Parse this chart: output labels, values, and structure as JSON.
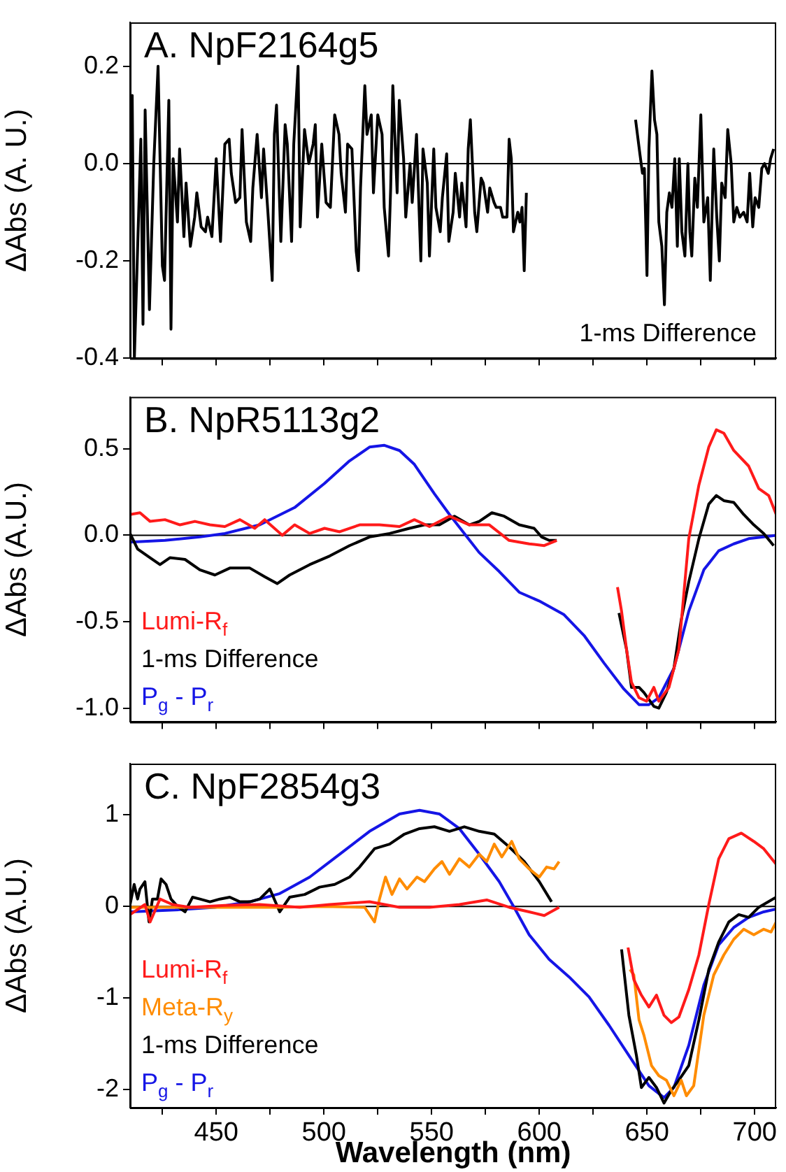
{
  "chart_data": [
    {
      "type": "line",
      "title": "A. NpF2164g5",
      "ylabel": "ΔAbs (A. U.)",
      "xlim": [
        410,
        710
      ],
      "ylim": [
        -0.4,
        0.29
      ],
      "xticks": [
        {
          "value": 425,
          "label": null
        },
        450,
        {
          "value": 475,
          "label": null
        },
        500,
        {
          "value": 525,
          "label": null
        },
        550,
        {
          "value": 575,
          "label": null
        },
        600,
        {
          "value": 625,
          "label": null
        },
        650,
        {
          "value": 675,
          "label": null
        },
        700
      ],
      "yticks": [
        {
          "value": -0.4,
          "label": "-0.4"
        },
        {
          "value": -0.2,
          "label": "-0.2"
        },
        {
          "value": 0,
          "label": "0.0"
        },
        {
          "value": 0.2,
          "label": "0.2"
        }
      ],
      "tick_labels": "y",
      "legend": "bottom right",
      "ref_lines": [
        {
          "axis": "y",
          "value": 0
        }
      ],
      "series": [
        {
          "name": "1-ms Difference",
          "color": "#000000",
          "x": [
            410,
            411,
            412,
            415,
            416,
            417,
            419,
            421,
            423,
            425,
            426,
            428,
            429,
            430,
            432,
            433,
            435,
            436,
            438,
            440,
            441,
            443,
            445,
            446,
            448,
            450,
            452,
            454,
            456,
            457,
            459,
            461,
            462,
            464,
            466,
            467,
            469,
            471,
            472,
            474,
            476,
            477,
            478,
            480,
            482,
            483,
            485,
            486,
            488,
            489,
            491,
            493,
            495,
            496,
            497,
            499,
            501,
            503,
            505,
            507,
            508,
            510,
            511,
            513,
            515,
            516,
            517,
            519,
            520,
            522,
            523,
            525,
            527,
            528,
            530,
            531,
            532,
            534,
            535,
            537,
            538,
            540,
            541,
            543,
            545,
            546,
            548,
            549,
            551,
            552,
            554,
            555,
            557,
            558,
            560,
            561,
            563,
            564,
            566,
            567,
            568,
            570,
            571,
            573,
            574,
            576,
            577,
            579,
            580,
            582,
            583,
            585,
            586,
            587,
            588,
            590,
            591,
            592,
            593,
            594,
            620,
            644.7,
            646.7,
            647.9,
            648.8,
            650.0,
            650.9,
            652.3,
            653.5,
            654.6,
            655.5,
            656.9,
            658.1,
            659.2,
            660.4,
            661.6,
            662.9,
            664.1,
            665.0,
            666.2,
            667.6,
            669.0,
            669.9,
            670.8,
            672.2,
            673.4,
            675.0,
            676.4,
            678.2,
            679.4,
            681.0,
            682.4,
            683.6,
            684.7,
            686.3,
            687.5,
            689.1,
            690.3,
            691.7,
            693.1,
            694.9,
            696.5,
            697.7,
            699.1,
            700.2,
            701.9,
            703.3,
            704.6,
            706.3,
            707.4,
            708.8
          ],
          "values": [
            0.0,
            0.14,
            -0.4,
            0.05,
            -0.33,
            0.11,
            -0.3,
            0.0,
            0.2,
            -0.21,
            -0.24,
            0.13,
            -0.34,
            0.01,
            -0.12,
            0.03,
            -0.15,
            -0.04,
            -0.17,
            -0.11,
            -0.06,
            -0.13,
            -0.14,
            -0.11,
            -0.15,
            0.01,
            -0.16,
            0.04,
            0.05,
            -0.02,
            -0.08,
            -0.07,
            0.07,
            -0.12,
            -0.16,
            -0.05,
            0.06,
            -0.07,
            0.03,
            -0.1,
            -0.24,
            0.06,
            0.12,
            -0.16,
            0.08,
            0.04,
            -0.16,
            0.04,
            0.2,
            -0.13,
            0.07,
            0.0,
            0.04,
            0.08,
            -0.11,
            0.04,
            -0.08,
            -0.09,
            0.1,
            0.06,
            -0.02,
            -0.1,
            0.04,
            0.03,
            -0.18,
            -0.22,
            -0.05,
            0.16,
            0.06,
            0.1,
            -0.06,
            0.1,
            0.06,
            -0.09,
            -0.19,
            -0.05,
            0.16,
            -0.06,
            0.13,
            0.01,
            -0.11,
            0.0,
            -0.08,
            0.06,
            -0.2,
            0.03,
            -0.04,
            -0.19,
            0.03,
            -0.09,
            -0.14,
            -0.07,
            0.02,
            -0.16,
            -0.1,
            -0.02,
            -0.11,
            -0.04,
            -0.13,
            0.03,
            0.09,
            -0.1,
            -0.14,
            -0.03,
            -0.04,
            -0.1,
            -0.05,
            -0.08,
            -0.09,
            -0.09,
            -0.11,
            -0.11,
            0.05,
            0.01,
            -0.14,
            -0.1,
            -0.12,
            -0.09,
            -0.22,
            -0.06,
            null,
            0.09,
            0.02,
            -0.02,
            -0.01,
            -0.23,
            0.03,
            0.19,
            0.09,
            0.06,
            -0.12,
            -0.17,
            -0.29,
            -0.1,
            -0.06,
            -0.09,
            0.01,
            -0.17,
            0.01,
            -0.14,
            -0.19,
            0.0,
            -0.14,
            -0.19,
            -0.03,
            -0.09,
            0.1,
            -0.12,
            -0.07,
            -0.24,
            0.03,
            -0.11,
            -0.2,
            -0.04,
            -0.07,
            0.07,
            0.0,
            -0.12,
            -0.09,
            -0.11,
            -0.1,
            -0.12,
            -0.02,
            -0.13,
            -0.07,
            -0.09,
            -0.01,
            0.0,
            -0.02,
            0.01,
            0.03
          ]
        }
      ]
    },
    {
      "type": "line",
      "title": "B. NpR5113g2",
      "ylabel": "ΔAbs (A.U.)",
      "xlim": [
        410,
        710
      ],
      "ylim": [
        -1.08,
        0.8
      ],
      "xticks": [
        {
          "value": 425,
          "label": null
        },
        450,
        {
          "value": 475,
          "label": null
        },
        500,
        {
          "value": 525,
          "label": null
        },
        550,
        {
          "value": 575,
          "label": null
        },
        600,
        {
          "value": 625,
          "label": null
        },
        650,
        {
          "value": 675,
          "label": null
        },
        700
      ],
      "yticks": [
        {
          "value": -1,
          "label": "-1.0"
        },
        {
          "value": -0.5,
          "label": "-0.5"
        },
        {
          "value": 0,
          "label": "0.0"
        },
        0.5
      ],
      "tick_labels": "y",
      "legend": "bottom left",
      "ref_lines": [
        {
          "axis": "y",
          "value": 0
        }
      ],
      "series": [
        {
          "name": "Lumi-R$_{f}$",
          "color": "#ff1a1a",
          "x": [
            410,
            414.6,
            419.3,
            426.2,
            433.2,
            440.1,
            447.1,
            454,
            461,
            467.9,
            472.5,
            480.7,
            486.4,
            493.4,
            500.3,
            507.3,
            516.6,
            525.8,
            535.1,
            542,
            549,
            558.3,
            567.5,
            576.8,
            586,
            595.3,
            602.3,
            608.1,
            622,
            636.3,
            638.2,
            640.5,
            642.8,
            646.3,
            649.8,
            653.2,
            655.5,
            660.2,
            664.8,
            669.4,
            674.1,
            678.7,
            682.2,
            685.7,
            690.3,
            697.2,
            701.9,
            706.5,
            710
          ],
          "values": [
            0.12,
            0.13,
            0.08,
            0.09,
            0.06,
            0.08,
            0.06,
            0.05,
            0.09,
            0.04,
            0.09,
            0.0,
            0.06,
            0.01,
            0.04,
            0.02,
            0.06,
            0.06,
            0.05,
            0.09,
            0.05,
            0.11,
            0.06,
            0.06,
            -0.03,
            -0.05,
            -0.06,
            -0.03,
            null,
            -0.3,
            -0.44,
            -0.66,
            -0.85,
            -0.94,
            -0.96,
            -0.88,
            -0.96,
            -0.88,
            -0.66,
            -0.02,
            0.29,
            0.51,
            0.61,
            0.59,
            0.49,
            0.4,
            0.27,
            0.23,
            0.12
          ]
        },
        {
          "name": "1-ms Difference",
          "color": "#000000",
          "x": [
            410,
            413.5,
            419.3,
            423.9,
            428.5,
            435.5,
            442.4,
            449.4,
            456.3,
            465.6,
            472.5,
            478.3,
            484.1,
            493.4,
            502.7,
            511.9,
            521.2,
            530.5,
            539.7,
            546.7,
            553.6,
            560.6,
            567.5,
            572.1,
            578,
            583.7,
            590.7,
            597.6,
            601.1,
            604.6,
            608.1,
            622,
            637,
            640.5,
            642.8,
            646.3,
            648.6,
            653.2,
            655.5,
            659,
            662.5,
            665.9,
            669.4,
            674.1,
            678.7,
            682.2,
            685.7,
            690.3,
            694.9,
            699.6,
            704.2,
            708.8
          ],
          "values": [
            0.01,
            -0.08,
            -0.13,
            -0.17,
            -0.13,
            -0.14,
            -0.2,
            -0.23,
            -0.19,
            -0.19,
            -0.24,
            -0.28,
            -0.23,
            -0.17,
            -0.12,
            -0.06,
            -0.01,
            0.01,
            0.04,
            0.06,
            0.06,
            0.11,
            0.06,
            0.08,
            0.13,
            0.11,
            0.06,
            0.04,
            -0.01,
            -0.03,
            -0.03,
            null,
            -0.45,
            -0.66,
            -0.88,
            -0.88,
            -0.91,
            -0.99,
            -1.0,
            -0.91,
            -0.77,
            -0.49,
            -0.27,
            -0.02,
            0.18,
            0.23,
            0.2,
            0.19,
            0.12,
            0.06,
            0.01,
            -0.06
          ]
        },
        {
          "name": "P$_{g}$ - P$_{r}$",
          "color": "#1515e6",
          "x": [
            410,
            426.2,
            442.4,
            454,
            470.2,
            486.4,
            500.3,
            511.9,
            521.2,
            528.1,
            535.1,
            542,
            551.3,
            558.3,
            565.2,
            572.1,
            581.4,
            590.7,
            599.9,
            611.5,
            620.8,
            630.1,
            639.3,
            646.3,
            650.9,
            655.5,
            662.5,
            669.4,
            676.4,
            683.3,
            690.3,
            697.2,
            704.2,
            710
          ],
          "values": [
            -0.04,
            -0.03,
            -0.01,
            0.01,
            0.06,
            0.16,
            0.3,
            0.43,
            0.51,
            0.52,
            0.49,
            0.41,
            0.24,
            0.12,
            0.01,
            -0.1,
            -0.21,
            -0.33,
            -0.38,
            -0.46,
            -0.58,
            -0.74,
            -0.89,
            -0.98,
            -0.98,
            -0.94,
            -0.77,
            -0.44,
            -0.2,
            -0.09,
            -0.05,
            -0.02,
            -0.01,
            0
          ]
        }
      ]
    },
    {
      "type": "line",
      "title": "C. NpF2854g3",
      "ylabel": "ΔAbs (A.U.)",
      "xlabel": "Wavelength (nm)",
      "xlim": [
        410,
        710
      ],
      "ylim": [
        -2.2,
        1.56
      ],
      "xticks": [
        {
          "value": 425,
          "label": null
        },
        450,
        {
          "value": 475,
          "label": null
        },
        500,
        {
          "value": 525,
          "label": null
        },
        550,
        {
          "value": 575,
          "label": null
        },
        600,
        {
          "value": 625,
          "label": null
        },
        650,
        {
          "value": 675,
          "label": null
        },
        700
      ],
      "yticks": [
        -2,
        -1,
        0,
        1
      ],
      "legend": "bottom left",
      "ref_lines": [
        {
          "axis": "y",
          "value": 0
        }
      ],
      "series": [
        {
          "name": "Lumi-R$_{f}$",
          "color": "#ff1a1a",
          "x": [
            410,
            416.9,
            419.3,
            423.9,
            429.7,
            437.8,
            454,
            470.2,
            488.8,
            502.7,
            521.2,
            535.1,
            549,
            562.9,
            575.6,
            586,
            595.3,
            602.3,
            609.2,
            625,
            641.2,
            643.9,
            647.4,
            650.9,
            654.4,
            657.9,
            661.3,
            664.8,
            669.4,
            674.1,
            678.7,
            683.3,
            688,
            693.8,
            699.6,
            704.2,
            710
          ],
          "values": [
            -0.09,
            0.02,
            -0.17,
            0.08,
            0.02,
            -0.01,
            0.01,
            0.02,
            -0.01,
            0.02,
            0.05,
            -0.01,
            -0.01,
            0.02,
            0.07,
            -0.01,
            -0.06,
            -0.1,
            -0.01,
            null,
            -0.45,
            -0.8,
            -0.97,
            -1.1,
            -0.97,
            -1.19,
            -1.27,
            -1.21,
            -0.91,
            -0.53,
            0.02,
            0.52,
            0.74,
            0.8,
            0.71,
            0.63,
            0.46
          ]
        },
        {
          "name": "Meta-R$_{y}$",
          "color": "#ff8c00",
          "x": [
            410,
            430.8,
            454,
            477.2,
            500.3,
            518.9,
            523.5,
            525.8,
            528.6,
            531.6,
            535.1,
            538.6,
            543.2,
            546.7,
            551.3,
            554.8,
            558.3,
            562.9,
            567.5,
            572.1,
            575.6,
            579.1,
            582.6,
            587.2,
            590.7,
            595.3,
            600,
            603.4,
            606.9,
            609.2,
            625,
            642.1,
            643.9,
            646.3,
            648.6,
            652.1,
            655.5,
            659,
            662.5,
            665.9,
            668.3,
            671.7,
            676.4,
            681,
            685.7,
            690.3,
            694.9,
            699.6,
            704.2,
            707.6,
            710
          ],
          "values": [
            -0.01,
            -0.01,
            -0.01,
            -0.01,
            0.0,
            -0.01,
            -0.17,
            0.08,
            0.32,
            0.13,
            0.3,
            0.19,
            0.32,
            0.27,
            0.41,
            0.49,
            0.35,
            0.52,
            0.43,
            0.57,
            0.49,
            0.68,
            0.54,
            0.71,
            0.52,
            0.41,
            0.32,
            0.43,
            0.41,
            0.49,
            null,
            -0.69,
            -0.75,
            -1.24,
            -1.41,
            -1.74,
            -1.85,
            -1.9,
            -2.07,
            -1.9,
            -2.07,
            -1.96,
            -1.19,
            -0.75,
            -0.53,
            -0.36,
            -0.25,
            -0.31,
            -0.25,
            -0.28,
            -0.17
          ]
        },
        {
          "name": "1-ms Difference",
          "color": "#000000",
          "x": [
            410,
            411.9,
            413.5,
            414.6,
            416.9,
            418.8,
            420.4,
            422.7,
            424.4,
            426.7,
            429,
            432,
            435.5,
            439,
            442.4,
            447.1,
            451.7,
            456.3,
            461,
            465.6,
            470.2,
            474.9,
            479.5,
            484.1,
            491.1,
            498,
            505,
            511.9,
            516.6,
            523.5,
            530.5,
            537.4,
            544.4,
            551.3,
            558.3,
            565.2,
            572.1,
            579.1,
            586,
            593,
            600,
            605.7,
            622,
            638.2,
            641.6,
            645.1,
            647.4,
            650.9,
            654.4,
            657.9,
            661.3,
            664.8,
            669.4,
            674.1,
            678.7,
            683.3,
            688,
            692.6,
            697.2,
            701.9,
            710
          ],
          "values": [
            0.02,
            0.24,
            0.08,
            0.19,
            0.27,
            -0.17,
            0.08,
            0.08,
            0.3,
            0.24,
            0.08,
            0.0,
            -0.06,
            0.1,
            0.08,
            0.05,
            0.08,
            0.1,
            0.05,
            0.05,
            0.08,
            0.19,
            -0.06,
            0.1,
            0.13,
            0.21,
            0.24,
            0.32,
            0.43,
            0.63,
            0.68,
            0.79,
            0.85,
            0.87,
            0.82,
            0.87,
            0.82,
            0.79,
            0.65,
            0.49,
            0.27,
            0.05,
            null,
            -0.47,
            -1.19,
            -1.63,
            -1.98,
            -1.87,
            -1.98,
            -2.15,
            -2.01,
            -1.9,
            -1.74,
            -1.24,
            -0.69,
            -0.39,
            -0.17,
            -0.09,
            -0.12,
            -0.01,
            0.1
          ]
        },
        {
          "name": "P$_{g}$ - P$_{r}$",
          "color": "#1515e6",
          "x": [
            410,
            430.8,
            449.4,
            465.6,
            479.5,
            493.4,
            507.3,
            521.2,
            535.1,
            544.4,
            553.6,
            562.9,
            572.1,
            581.4,
            588.3,
            595.3,
            604.6,
            613.8,
            623.1,
            632.4,
            641.6,
            650.9,
            657.9,
            662.5,
            669.4,
            676.4,
            683.3,
            690.3,
            697.2,
            704.2,
            710
          ],
          "values": [
            -0.06,
            -0.04,
            -0.01,
            0.05,
            0.14,
            0.32,
            0.57,
            0.82,
            1.01,
            1.05,
            1.01,
            0.85,
            0.57,
            0.27,
            -0.01,
            -0.31,
            -0.58,
            -0.77,
            -0.99,
            -1.3,
            -1.63,
            -1.96,
            -2.09,
            -1.98,
            -1.52,
            -0.86,
            -0.42,
            -0.23,
            -0.12,
            -0.06,
            -0.03
          ]
        }
      ]
    }
  ]
}
